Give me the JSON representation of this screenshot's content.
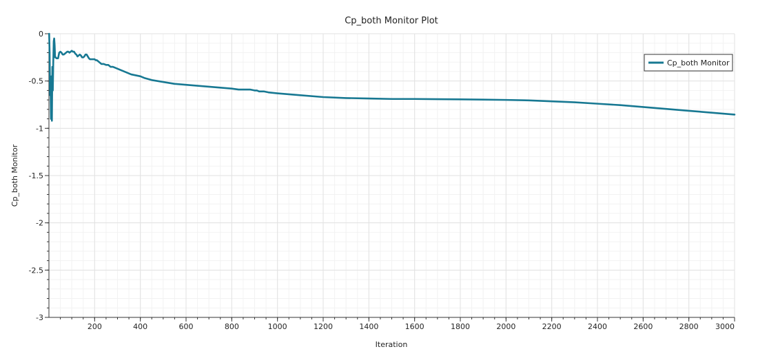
{
  "chart_data": {
    "type": "line",
    "title": "Cp_both Monitor Plot",
    "xlabel": "Iteration",
    "ylabel": "Cp_both Monitor",
    "xlim": [
      0,
      3000
    ],
    "ylim": [
      -3,
      0
    ],
    "xticks": [
      200,
      400,
      600,
      800,
      1000,
      1200,
      1400,
      1600,
      1800,
      2000,
      2200,
      2400,
      2600,
      2800,
      3000
    ],
    "yticks": [
      0,
      -0.5,
      -1,
      -1.5,
      -2,
      -2.5,
      -3
    ],
    "grid": true,
    "legend_position": "top-right",
    "series": [
      {
        "name": "Cp_both Monitor",
        "color": "#177892",
        "x": [
          1,
          3,
          5,
          7,
          9,
          11,
          13,
          15,
          17,
          19,
          21,
          23,
          25,
          27,
          30,
          33,
          36,
          40,
          45,
          50,
          55,
          60,
          65,
          70,
          75,
          80,
          85,
          90,
          95,
          100,
          105,
          110,
          115,
          120,
          125,
          130,
          135,
          140,
          145,
          150,
          155,
          160,
          165,
          170,
          175,
          180,
          185,
          190,
          195,
          200,
          205,
          210,
          220,
          230,
          240,
          250,
          260,
          270,
          280,
          300,
          320,
          340,
          360,
          380,
          400,
          420,
          450,
          500,
          550,
          600,
          650,
          700,
          750,
          800,
          830,
          860,
          880,
          900,
          910,
          920,
          930,
          940,
          960,
          1000,
          1100,
          1200,
          1300,
          1400,
          1500,
          1600,
          1700,
          1800,
          1900,
          2000,
          2100,
          2200,
          2300,
          2400,
          2500,
          2600,
          2700,
          2800,
          2900,
          3000
        ],
        "values": [
          0,
          -0.2,
          -0.65,
          -0.55,
          -0.9,
          -0.45,
          -0.92,
          -0.35,
          -0.6,
          -0.3,
          -0.08,
          -0.05,
          -0.12,
          -0.25,
          -0.25,
          -0.26,
          -0.26,
          -0.26,
          -0.2,
          -0.19,
          -0.2,
          -0.22,
          -0.22,
          -0.21,
          -0.2,
          -0.19,
          -0.19,
          -0.2,
          -0.19,
          -0.18,
          -0.19,
          -0.19,
          -0.21,
          -0.22,
          -0.24,
          -0.23,
          -0.22,
          -0.23,
          -0.25,
          -0.25,
          -0.24,
          -0.22,
          -0.22,
          -0.24,
          -0.26,
          -0.27,
          -0.27,
          -0.27,
          -0.27,
          -0.27,
          -0.28,
          -0.28,
          -0.3,
          -0.32,
          -0.32,
          -0.33,
          -0.33,
          -0.35,
          -0.35,
          -0.37,
          -0.39,
          -0.41,
          -0.43,
          -0.44,
          -0.45,
          -0.47,
          -0.49,
          -0.51,
          -0.53,
          -0.54,
          -0.55,
          -0.56,
          -0.57,
          -0.58,
          -0.59,
          -0.59,
          -0.59,
          -0.6,
          -0.6,
          -0.61,
          -0.61,
          -0.61,
          -0.62,
          -0.63,
          -0.65,
          -0.67,
          -0.68,
          -0.685,
          -0.69,
          -0.69,
          -0.692,
          -0.694,
          -0.697,
          -0.7,
          -0.705,
          -0.715,
          -0.725,
          -0.74,
          -0.755,
          -0.775,
          -0.795,
          -0.815,
          -0.835,
          -0.855
        ]
      }
    ]
  }
}
